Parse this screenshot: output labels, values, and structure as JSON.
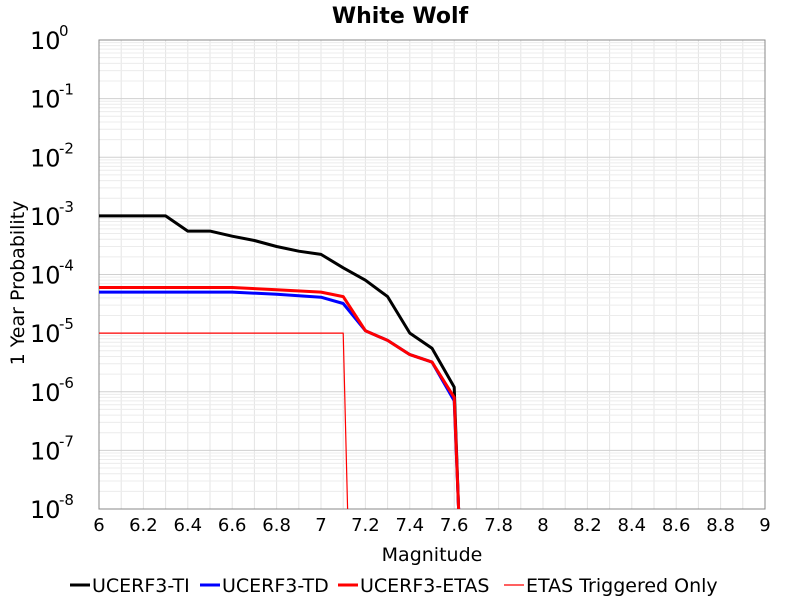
{
  "chart_data": {
    "type": "line",
    "title": "White Wolf",
    "xlabel": "Magnitude",
    "ylabel": "1 Year Probability",
    "xlim": [
      6,
      9
    ],
    "ylim": [
      1e-08,
      1
    ],
    "yscale": "log",
    "grid": true,
    "legend_position": "bottom",
    "x_ticks": [
      "6",
      "6.2",
      "6.4",
      "6.6",
      "6.8",
      "7",
      "7.2",
      "7.4",
      "7.6",
      "7.8",
      "8",
      "8.2",
      "8.4",
      "8.6",
      "8.8",
      "9"
    ],
    "y_ticks": [
      {
        "base": "10",
        "exp": "0"
      },
      {
        "base": "10",
        "exp": "-1"
      },
      {
        "base": "10",
        "exp": "-2"
      },
      {
        "base": "10",
        "exp": "-3"
      },
      {
        "base": "10",
        "exp": "-4"
      },
      {
        "base": "10",
        "exp": "-5"
      },
      {
        "base": "10",
        "exp": "-6"
      },
      {
        "base": "10",
        "exp": "-7"
      },
      {
        "base": "10",
        "exp": "-8"
      }
    ],
    "series": [
      {
        "name": "UCERF3-TI",
        "color": "#000000",
        "width": "thick",
        "points": [
          [
            6.0,
            0.001
          ],
          [
            6.3,
            0.001
          ],
          [
            6.4,
            0.00055
          ],
          [
            6.5,
            0.00055
          ],
          [
            6.6,
            0.00045
          ],
          [
            6.7,
            0.00038
          ],
          [
            6.8,
            0.0003
          ],
          [
            6.9,
            0.00025
          ],
          [
            7.0,
            0.00022
          ],
          [
            7.1,
            0.00013
          ],
          [
            7.2,
            8e-05
          ],
          [
            7.3,
            4.2e-05
          ],
          [
            7.4,
            1e-05
          ],
          [
            7.5,
            5.5e-06
          ],
          [
            7.6,
            1.2e-06
          ],
          [
            7.62,
            1e-08
          ]
        ]
      },
      {
        "name": "UCERF3-TD",
        "color": "#0000ff",
        "width": "thick",
        "points": [
          [
            6.0,
            5e-05
          ],
          [
            6.6,
            5e-05
          ],
          [
            6.8,
            4.6e-05
          ],
          [
            7.0,
            4.1e-05
          ],
          [
            7.1,
            3.2e-05
          ],
          [
            7.2,
            1.1e-05
          ],
          [
            7.3,
            7.5e-06
          ],
          [
            7.4,
            4.3e-06
          ],
          [
            7.5,
            3.2e-06
          ],
          [
            7.6,
            7e-07
          ],
          [
            7.62,
            1e-08
          ]
        ]
      },
      {
        "name": "UCERF3-ETAS",
        "color": "#ff0000",
        "width": "thick",
        "points": [
          [
            6.0,
            6e-05
          ],
          [
            6.6,
            6e-05
          ],
          [
            6.8,
            5.5e-05
          ],
          [
            7.0,
            5e-05
          ],
          [
            7.1,
            4.2e-05
          ],
          [
            7.2,
            1.1e-05
          ],
          [
            7.3,
            7.5e-06
          ],
          [
            7.4,
            4.3e-06
          ],
          [
            7.5,
            3.2e-06
          ],
          [
            7.6,
            8e-07
          ],
          [
            7.62,
            1e-08
          ]
        ]
      },
      {
        "name": "ETAS Triggered Only",
        "color": "#ff0000",
        "width": "thin",
        "points": [
          [
            6.0,
            1e-05
          ],
          [
            7.1,
            1e-05
          ],
          [
            7.12,
            1e-08
          ]
        ]
      }
    ]
  }
}
